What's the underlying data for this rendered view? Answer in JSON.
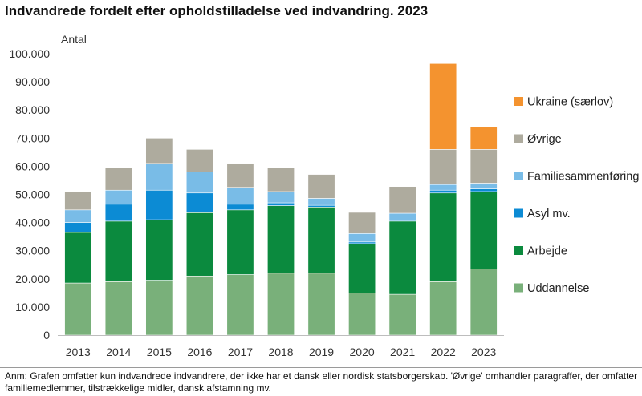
{
  "title": "Indvandrede fordelt efter opholdstilladelse ved indvandring. 2023",
  "note": "Anm: Grafen omfatter kun indvandrede indvandrere, der ikke har et dansk eller nordisk statsborgerskab. 'Øvrige' omhandler paragraffer, der omfatter familiemedlemmer, tilstrækkelige midler, dansk afstamning mv.",
  "chart_data": {
    "type": "bar",
    "stacked": true,
    "ylabel": "Antal",
    "ylim": [
      0,
      100000
    ],
    "yticks": [
      "0",
      "10.000",
      "20.000",
      "30.000",
      "40.000",
      "50.000",
      "60.000",
      "70.000",
      "80.000",
      "90.000",
      "100.000"
    ],
    "grid": false,
    "legend_position": "right",
    "categories": [
      "2013",
      "2014",
      "2015",
      "2016",
      "2017",
      "2018",
      "2019",
      "2020",
      "2021",
      "2022",
      "2023"
    ],
    "series": [
      {
        "name": "Uddannelse",
        "color": "#79b07a",
        "values": [
          18500,
          19000,
          19500,
          21000,
          21500,
          22000,
          22000,
          15000,
          14500,
          19000,
          23500
        ]
      },
      {
        "name": "Arbejde",
        "color": "#0b8a3e",
        "values": [
          18000,
          21500,
          21500,
          22500,
          23000,
          24000,
          23500,
          17500,
          26000,
          31500,
          27500
        ]
      },
      {
        "name": "Asyl mv.",
        "color": "#0c8bd4",
        "values": [
          3500,
          6000,
          10500,
          7000,
          2000,
          1000,
          600,
          600,
          300,
          1000,
          1000
        ]
      },
      {
        "name": "Familiesammenføring",
        "color": "#79bce7",
        "values": [
          4500,
          5000,
          9500,
          7500,
          6000,
          4000,
          2500,
          3000,
          2500,
          2000,
          2000
        ]
      },
      {
        "name": "Øvrige",
        "color": "#aeab9e",
        "values": [
          6500,
          8000,
          9000,
          8000,
          8500,
          8500,
          8500,
          7500,
          9500,
          12500,
          12000
        ]
      },
      {
        "name": "Ukraine (særlov)",
        "color": "#f4932f",
        "values": [
          0,
          0,
          0,
          0,
          0,
          0,
          0,
          0,
          0,
          30500,
          8000
        ]
      }
    ]
  }
}
